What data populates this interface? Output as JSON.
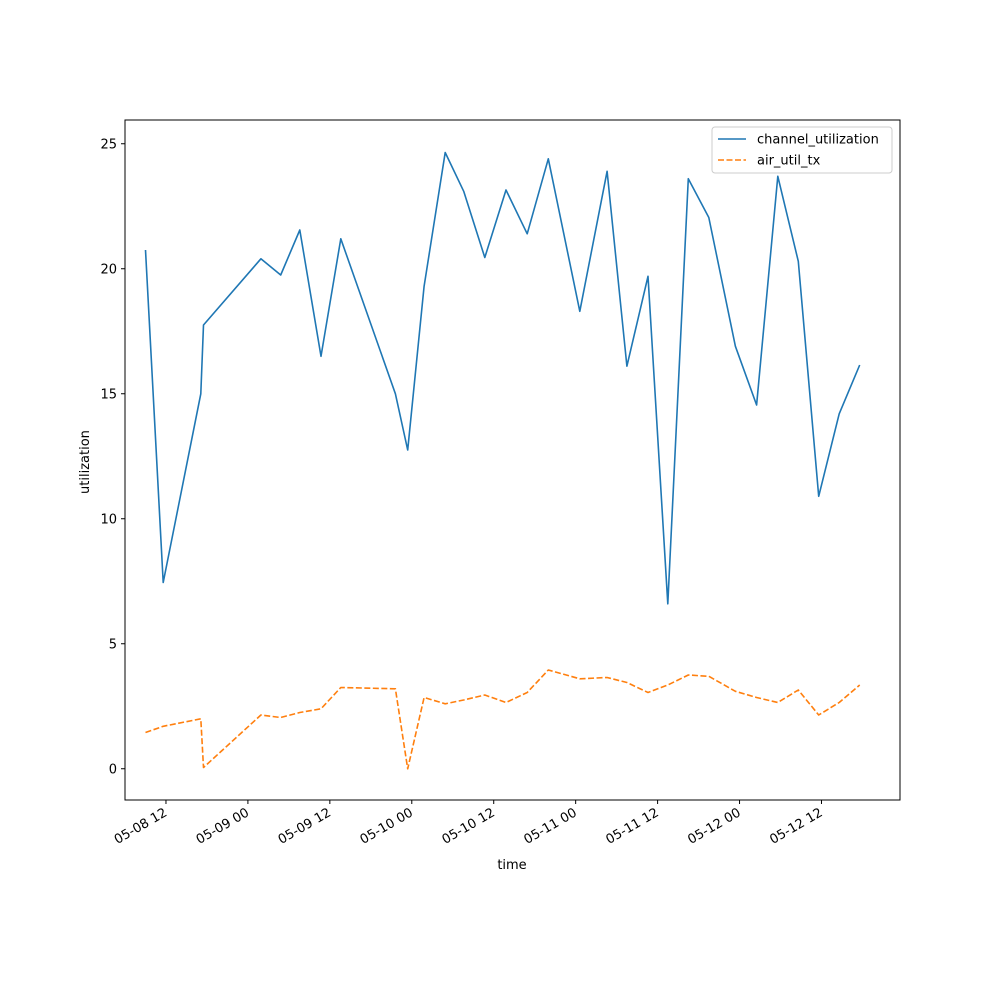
{
  "chart_data": {
    "type": "line",
    "xlabel": "time",
    "ylabel": "utilization",
    "ylim": [
      -1.25,
      25.95
    ],
    "yticks": [
      0,
      5,
      10,
      15,
      20,
      25
    ],
    "xlim_hours": [
      -18.0,
      95.5
    ],
    "xticks": [
      {
        "label": "05-08 12",
        "hour": -12
      },
      {
        "label": "05-09 00",
        "hour": 0
      },
      {
        "label": "05-09 12",
        "hour": 12
      },
      {
        "label": "05-10 00",
        "hour": 24
      },
      {
        "label": "05-10 12",
        "hour": 36
      },
      {
        "label": "05-11 00",
        "hour": 48
      },
      {
        "label": "05-11 12",
        "hour": 60
      },
      {
        "label": "05-12 00",
        "hour": 72
      },
      {
        "label": "05-12 12",
        "hour": 84
      }
    ],
    "x": [
      -15.0,
      -12.4,
      -6.9,
      -6.5,
      1.9,
      4.8,
      7.6,
      10.7,
      13.6,
      21.6,
      23.4,
      25.8,
      28.9,
      31.6,
      34.7,
      37.8,
      40.9,
      44.0,
      48.6,
      52.6,
      55.5,
      58.6,
      61.5,
      64.5,
      67.5,
      71.4,
      74.5,
      77.6,
      80.6,
      83.6,
      86.6,
      89.6
    ],
    "series": [
      {
        "name": "channel_utilization",
        "color": "#1f77b4",
        "dash": "solid",
        "values": [
          20.75,
          7.45,
          15.0,
          17.75,
          20.4,
          19.75,
          21.55,
          16.5,
          21.2,
          15.0,
          12.75,
          19.3,
          24.65,
          23.1,
          20.45,
          23.15,
          21.4,
          24.4,
          18.3,
          23.9,
          16.1,
          19.7,
          6.6,
          23.6,
          22.05,
          16.9,
          14.55,
          23.7,
          20.3,
          10.9,
          14.2,
          16.15
        ]
      },
      {
        "name": "air_util_tx",
        "color": "#ff7f0e",
        "dash": "dashed",
        "values": [
          1.45,
          1.7,
          2.0,
          0.05,
          2.15,
          2.05,
          2.25,
          2.4,
          3.25,
          3.2,
          0.0,
          2.85,
          2.6,
          2.75,
          2.95,
          2.65,
          3.05,
          3.95,
          3.6,
          3.65,
          3.45,
          3.05,
          3.35,
          3.75,
          3.7,
          3.1,
          2.85,
          2.65,
          3.15,
          2.15,
          2.65,
          3.35
        ]
      }
    ],
    "legend_position": "top-right",
    "grid": false
  }
}
